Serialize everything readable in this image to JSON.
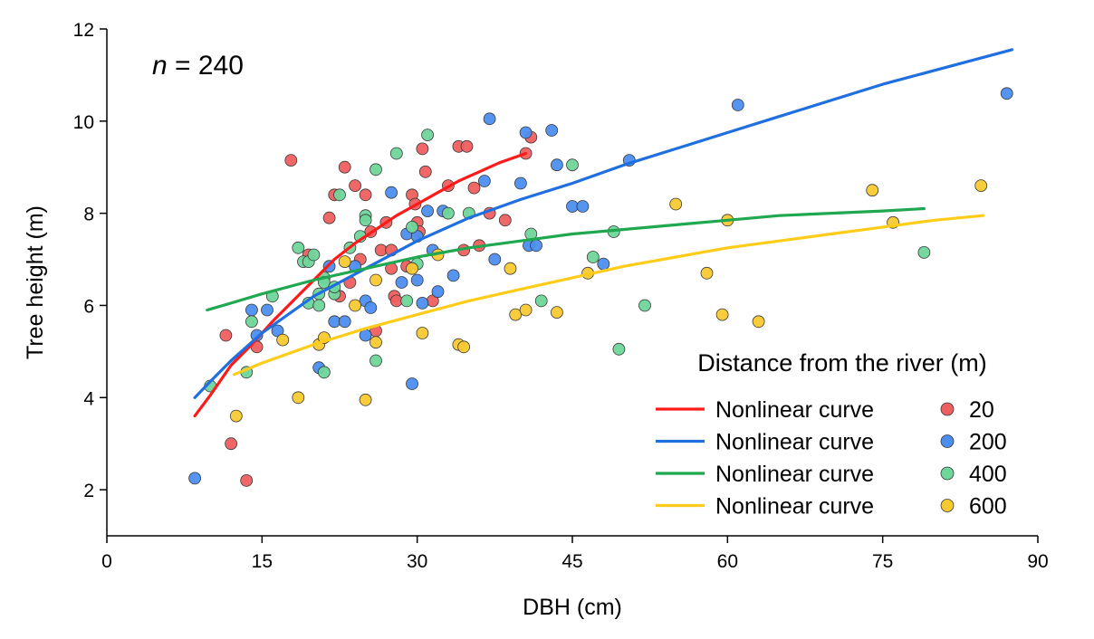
{
  "chart_data": {
    "type": "scatter",
    "xlabel": "DBH (cm)",
    "ylabel": "Tree height (m)",
    "xlim": [
      0,
      90
    ],
    "ylim": [
      1,
      12
    ],
    "xticks": [
      0,
      15,
      30,
      45,
      60,
      75,
      90
    ],
    "yticks": [
      2,
      4,
      6,
      8,
      10,
      12
    ],
    "annotation": {
      "italic": "n",
      "text": " = 240"
    },
    "legend": {
      "title": "Distance from the river (m)",
      "position": "bottom-right",
      "entries": [
        {
          "line_label": "Nonlinear curve",
          "point_label": "20",
          "color": "#ff1a1a"
        },
        {
          "line_label": "Nonlinear curve",
          "point_label": "200",
          "color": "#1f6fe0"
        },
        {
          "line_label": "Nonlinear curve",
          "point_label": "400",
          "color": "#1fa84f"
        },
        {
          "line_label": "Nonlinear curve",
          "point_label": "600",
          "color": "#ffcc1a"
        }
      ]
    },
    "point_colors": {
      "20": "#ee5f5f",
      "200": "#4c8ef0",
      "400": "#6fd69a",
      "600": "#f8c92f"
    },
    "grid": false,
    "curves": [
      {
        "group": "20",
        "color": "#ff1a1a",
        "points": [
          [
            8.5,
            3.6
          ],
          [
            10,
            4.05
          ],
          [
            12,
            4.7
          ],
          [
            14,
            5.15
          ],
          [
            16,
            5.65
          ],
          [
            18,
            6.1
          ],
          [
            20,
            6.55
          ],
          [
            22,
            7.0
          ],
          [
            24,
            7.35
          ],
          [
            26,
            7.65
          ],
          [
            28,
            7.95
          ],
          [
            30,
            8.2
          ],
          [
            32,
            8.45
          ],
          [
            34,
            8.7
          ],
          [
            36,
            8.9
          ],
          [
            38,
            9.1
          ],
          [
            40.5,
            9.3
          ]
        ]
      },
      {
        "group": "200",
        "color": "#1f6fe0",
        "points": [
          [
            8.5,
            4.0
          ],
          [
            10,
            4.35
          ],
          [
            12,
            4.8
          ],
          [
            15,
            5.4
          ],
          [
            20,
            6.2
          ],
          [
            25,
            6.8
          ],
          [
            30,
            7.4
          ],
          [
            35,
            7.9
          ],
          [
            40,
            8.3
          ],
          [
            45,
            8.65
          ],
          [
            50,
            9.05
          ],
          [
            55,
            9.4
          ],
          [
            60,
            9.75
          ],
          [
            65,
            10.1
          ],
          [
            70,
            10.45
          ],
          [
            75,
            10.8
          ],
          [
            80,
            11.1
          ],
          [
            87.5,
            11.55
          ]
        ]
      },
      {
        "group": "400",
        "color": "#1fa84f",
        "points": [
          [
            9.7,
            5.9
          ],
          [
            12,
            6.05
          ],
          [
            15,
            6.25
          ],
          [
            20,
            6.55
          ],
          [
            25,
            6.8
          ],
          [
            30,
            7.05
          ],
          [
            35,
            7.25
          ],
          [
            40,
            7.4
          ],
          [
            45,
            7.55
          ],
          [
            50,
            7.65
          ],
          [
            55,
            7.75
          ],
          [
            60,
            7.85
          ],
          [
            65,
            7.95
          ],
          [
            70,
            8.0
          ],
          [
            75,
            8.05
          ],
          [
            79,
            8.1
          ]
        ]
      },
      {
        "group": "600",
        "color": "#ffcc1a",
        "points": [
          [
            12.3,
            4.5
          ],
          [
            15,
            4.75
          ],
          [
            20,
            5.15
          ],
          [
            25,
            5.5
          ],
          [
            30,
            5.8
          ],
          [
            35,
            6.1
          ],
          [
            40,
            6.35
          ],
          [
            45,
            6.6
          ],
          [
            50,
            6.85
          ],
          [
            55,
            7.05
          ],
          [
            60,
            7.25
          ],
          [
            65,
            7.4
          ],
          [
            70,
            7.55
          ],
          [
            75,
            7.7
          ],
          [
            80,
            7.85
          ],
          [
            84.7,
            7.95
          ]
        ]
      }
    ],
    "series": [
      {
        "group": "20",
        "points": [
          [
            11.5,
            5.35
          ],
          [
            12,
            3.0
          ],
          [
            13.5,
            2.2
          ],
          [
            14.5,
            5.1
          ],
          [
            17.8,
            9.15
          ],
          [
            19.5,
            7.1
          ],
          [
            21.5,
            7.9
          ],
          [
            22,
            8.4
          ],
          [
            22.5,
            6.2
          ],
          [
            23,
            9.0
          ],
          [
            23.5,
            6.5
          ],
          [
            24,
            8.6
          ],
          [
            24.5,
            7.0
          ],
          [
            25,
            8.4
          ],
          [
            25.5,
            7.6
          ],
          [
            26,
            5.45
          ],
          [
            26.5,
            7.2
          ],
          [
            27,
            7.8
          ],
          [
            27.5,
            7.2
          ],
          [
            27.8,
            6.2
          ],
          [
            28,
            6.1
          ],
          [
            29.5,
            8.4
          ],
          [
            29.8,
            8.2
          ],
          [
            30,
            7.8
          ],
          [
            30.2,
            7.6
          ],
          [
            30.5,
            9.4
          ],
          [
            30.8,
            8.9
          ],
          [
            31.5,
            6.1
          ],
          [
            33,
            8.6
          ],
          [
            34,
            9.45
          ],
          [
            34.5,
            7.2
          ],
          [
            34.8,
            9.45
          ],
          [
            35.5,
            8.55
          ],
          [
            36,
            7.3
          ],
          [
            37,
            8.0
          ],
          [
            38.5,
            7.85
          ],
          [
            40.5,
            9.3
          ],
          [
            41,
            9.65
          ],
          [
            29,
            6.85
          ],
          [
            27.5,
            6.8
          ]
        ]
      },
      {
        "group": "200",
        "points": [
          [
            8.5,
            2.25
          ],
          [
            14,
            5.9
          ],
          [
            14.5,
            5.35
          ],
          [
            15.5,
            5.9
          ],
          [
            16.5,
            5.45
          ],
          [
            20.5,
            4.65
          ],
          [
            21.5,
            6.85
          ],
          [
            22,
            5.65
          ],
          [
            23,
            5.65
          ],
          [
            24,
            6.85
          ],
          [
            25,
            6.1
          ],
          [
            25.5,
            5.95
          ],
          [
            25,
            5.35
          ],
          [
            27.5,
            8.45
          ],
          [
            28.5,
            6.5
          ],
          [
            29,
            7.55
          ],
          [
            29.5,
            4.3
          ],
          [
            30,
            7.5
          ],
          [
            30.5,
            6.05
          ],
          [
            31,
            8.05
          ],
          [
            31.5,
            7.2
          ],
          [
            32,
            6.3
          ],
          [
            32.5,
            8.05
          ],
          [
            33.5,
            6.65
          ],
          [
            36.5,
            8.7
          ],
          [
            37,
            10.05
          ],
          [
            37.5,
            7.0
          ],
          [
            40,
            8.65
          ],
          [
            40.5,
            9.75
          ],
          [
            40.8,
            7.3
          ],
          [
            41.5,
            7.3
          ],
          [
            43,
            9.8
          ],
          [
            43.5,
            9.05
          ],
          [
            45,
            8.15
          ],
          [
            46,
            8.15
          ],
          [
            48,
            6.9
          ],
          [
            50.5,
            9.15
          ],
          [
            61,
            10.35
          ],
          [
            87,
            10.6
          ],
          [
            30,
            6.55
          ]
        ]
      },
      {
        "group": "400",
        "points": [
          [
            10,
            4.25
          ],
          [
            13.5,
            4.55
          ],
          [
            14,
            5.65
          ],
          [
            16,
            6.2
          ],
          [
            18.5,
            7.25
          ],
          [
            19,
            6.95
          ],
          [
            19.5,
            6.95
          ],
          [
            19.5,
            6.05
          ],
          [
            20,
            7.1
          ],
          [
            20.5,
            6.25
          ],
          [
            20.5,
            6.0
          ],
          [
            21,
            6.6
          ],
          [
            21,
            4.55
          ],
          [
            22,
            6.25
          ],
          [
            22.5,
            8.4
          ],
          [
            23.5,
            7.25
          ],
          [
            24.5,
            7.5
          ],
          [
            25,
            7.95
          ],
          [
            25,
            7.85
          ],
          [
            26,
            8.95
          ],
          [
            26,
            4.8
          ],
          [
            28,
            9.3
          ],
          [
            29,
            6.1
          ],
          [
            29.5,
            7.7
          ],
          [
            30,
            6.9
          ],
          [
            31,
            9.7
          ],
          [
            33,
            8.0
          ],
          [
            35,
            8.0
          ],
          [
            41,
            7.55
          ],
          [
            42,
            6.1
          ],
          [
            45,
            9.05
          ],
          [
            47,
            7.05
          ],
          [
            49,
            7.6
          ],
          [
            49.5,
            5.05
          ],
          [
            52,
            6.0
          ],
          [
            79,
            7.15
          ],
          [
            21,
            6.5
          ],
          [
            22,
            6.4
          ]
        ]
      },
      {
        "group": "600",
        "points": [
          [
            12.5,
            3.6
          ],
          [
            17,
            5.25
          ],
          [
            18.5,
            4.0
          ],
          [
            20.5,
            5.15
          ],
          [
            21,
            5.3
          ],
          [
            23,
            6.95
          ],
          [
            24,
            6.0
          ],
          [
            25,
            3.95
          ],
          [
            26,
            6.55
          ],
          [
            26,
            5.2
          ],
          [
            29.5,
            6.8
          ],
          [
            30.5,
            5.4
          ],
          [
            32,
            7.1
          ],
          [
            34,
            5.15
          ],
          [
            34.5,
            5.1
          ],
          [
            39,
            6.8
          ],
          [
            39.5,
            5.8
          ],
          [
            40.5,
            5.9
          ],
          [
            43.5,
            5.85
          ],
          [
            46.5,
            6.7
          ],
          [
            55,
            8.2
          ],
          [
            58,
            6.7
          ],
          [
            59.5,
            5.8
          ],
          [
            60,
            7.85
          ],
          [
            63,
            5.65
          ],
          [
            74,
            8.5
          ],
          [
            76,
            7.8
          ],
          [
            84.5,
            8.6
          ]
        ]
      }
    ]
  }
}
